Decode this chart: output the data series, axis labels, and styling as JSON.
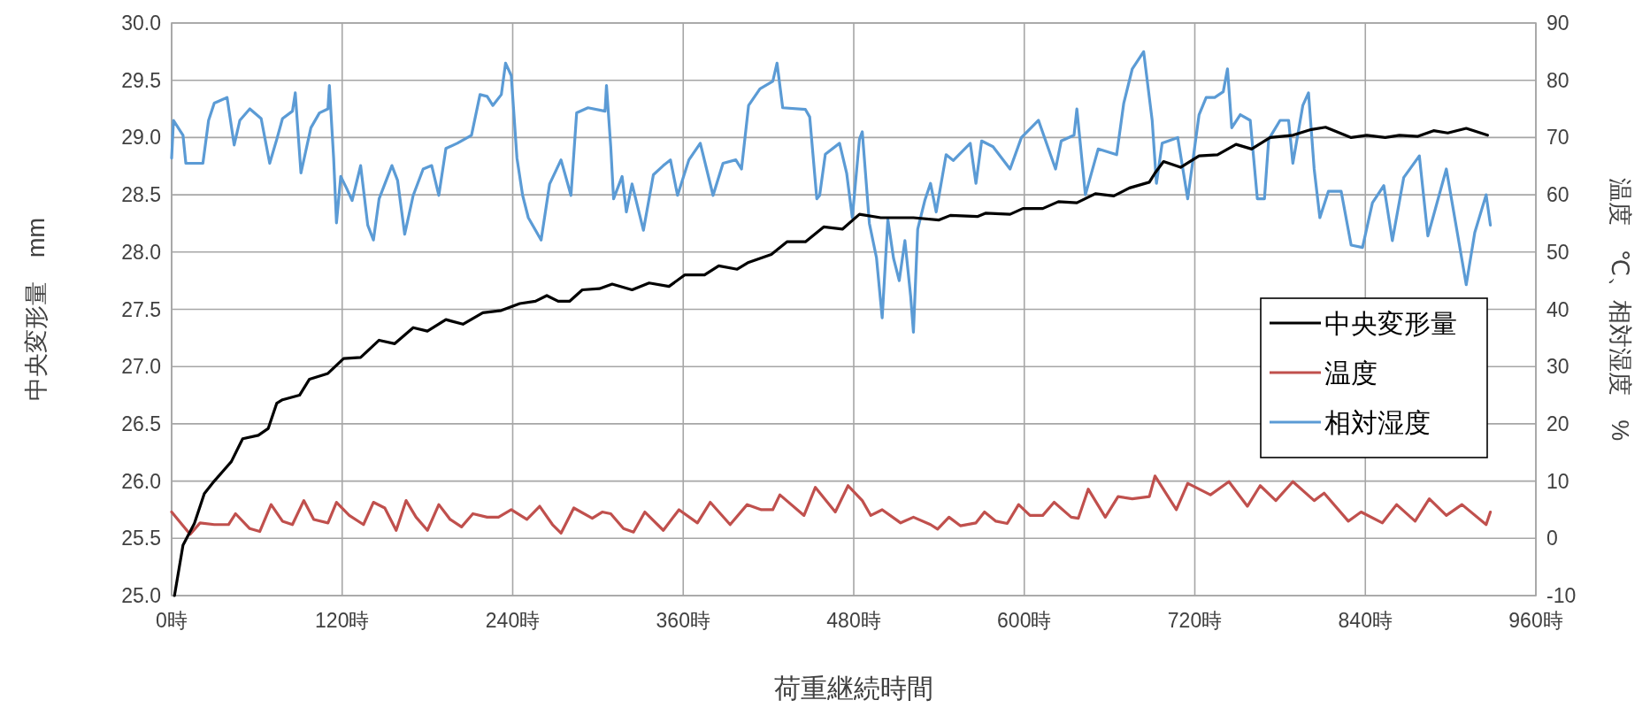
{
  "chart_data": {
    "type": "line",
    "xlabel": "荷重継続時間",
    "ylabel": "中央変形量　mm",
    "y2label": "温度　℃、相対湿度　%",
    "xlim": [
      0,
      960
    ],
    "xticks": [
      {
        "value": 0,
        "label": "0時"
      },
      {
        "value": 120,
        "label": "120時"
      },
      {
        "value": 240,
        "label": "240時"
      },
      {
        "value": 360,
        "label": "360時"
      },
      {
        "value": 480,
        "label": "480時"
      },
      {
        "value": 600,
        "label": "600時"
      },
      {
        "value": 720,
        "label": "720時"
      },
      {
        "value": 840,
        "label": "840時"
      },
      {
        "value": 960,
        "label": "960時"
      }
    ],
    "ylim": [
      25,
      30
    ],
    "yticks": [
      {
        "value": 25,
        "label": "25.0"
      },
      {
        "value": 25.5,
        "label": "25.5"
      },
      {
        "value": 26,
        "label": "26.0"
      },
      {
        "value": 26.5,
        "label": "26.5"
      },
      {
        "value": 27,
        "label": "27.0"
      },
      {
        "value": 27.5,
        "label": "27.5"
      },
      {
        "value": 28,
        "label": "28.0"
      },
      {
        "value": 28.5,
        "label": "28.5"
      },
      {
        "value": 29,
        "label": "29.0"
      },
      {
        "value": 29.5,
        "label": "29.5"
      },
      {
        "value": 30,
        "label": "30.0"
      }
    ],
    "y2lim": [
      -10,
      90
    ],
    "y2ticks": [
      -10,
      0,
      10,
      20,
      30,
      40,
      50,
      60,
      70,
      80,
      90
    ],
    "grid": true,
    "legend": "right",
    "series": [
      {
        "name": "中央変形量",
        "color": "#000000",
        "axis": "y",
        "x": [
          2,
          8,
          16,
          23,
          30,
          42,
          50,
          61,
          68,
          74,
          78,
          90,
          97,
          110,
          121,
          133,
          146,
          157,
          170,
          180,
          193,
          205,
          219,
          232,
          245,
          256,
          264,
          272,
          280,
          289,
          301,
          310,
          324,
          336,
          350,
          361,
          375,
          385,
          398,
          406,
          422,
          433,
          446,
          459,
          472,
          484,
          499,
          522,
          540,
          548,
          567,
          573,
          590,
          599,
          613,
          624,
          637,
          650,
          663,
          674,
          688,
          692,
          698,
          710,
          723,
          736,
          749,
          760,
          773,
          789,
          802,
          812,
          830,
          841,
          854,
          864,
          877,
          888,
          898,
          911,
          926
        ],
        "values": [
          25.0,
          25.44,
          25.63,
          25.89,
          26.0,
          26.17,
          26.37,
          26.4,
          26.46,
          26.68,
          26.71,
          26.75,
          26.89,
          26.94,
          27.07,
          27.08,
          27.23,
          27.2,
          27.34,
          27.31,
          27.41,
          27.37,
          27.47,
          27.49,
          27.55,
          27.57,
          27.62,
          27.57,
          27.57,
          27.67,
          27.68,
          27.72,
          27.67,
          27.73,
          27.7,
          27.8,
          27.8,
          27.88,
          27.85,
          27.91,
          27.98,
          28.09,
          28.09,
          28.22,
          28.2,
          28.33,
          28.3,
          28.3,
          28.28,
          28.32,
          28.31,
          28.34,
          28.33,
          28.38,
          28.38,
          28.44,
          28.43,
          28.51,
          28.49,
          28.56,
          28.61,
          28.69,
          28.79,
          28.74,
          28.84,
          28.85,
          28.94,
          28.9,
          29.0,
          29.02,
          29.07,
          29.09,
          29.0,
          29.02,
          29.0,
          29.02,
          29.01,
          29.06,
          29.04,
          29.08,
          29.02
        ]
      },
      {
        "name": "温度",
        "color": "#c0504d",
        "axis": "y2",
        "x": [
          0,
          13,
          20,
          30,
          40,
          45,
          55,
          62,
          70,
          78,
          85,
          93,
          100,
          110,
          116,
          125,
          135,
          142,
          150,
          158,
          165,
          172,
          180,
          188,
          196,
          204,
          212,
          222,
          230,
          239,
          250,
          259,
          268,
          274,
          283,
          296,
          303,
          309,
          318,
          325,
          333,
          346,
          357,
          370,
          379,
          393,
          405,
          415,
          423,
          428,
          445,
          453,
          467,
          476,
          486,
          492,
          500,
          513,
          522,
          534,
          539,
          547,
          555,
          566,
          572,
          580,
          588,
          596,
          604,
          613,
          621,
          633,
          638,
          645,
          657,
          666,
          676,
          688,
          692,
          707,
          715,
          731,
          744,
          757,
          766,
          777,
          789,
          804,
          811,
          828,
          837,
          852,
          862,
          875,
          885,
          897,
          908,
          925,
          928
        ],
        "values": [
          4.6,
          0.7,
          2.7,
          2.4,
          2.4,
          4.3,
          1.7,
          1.2,
          5.9,
          3.0,
          2.4,
          6.6,
          3.3,
          2.7,
          6.3,
          4.0,
          2.4,
          6.3,
          5.3,
          1.4,
          6.6,
          3.7,
          1.4,
          5.9,
          3.3,
          2.0,
          4.3,
          3.7,
          3.7,
          5.0,
          3.3,
          5.6,
          2.4,
          0.9,
          5.3,
          3.5,
          4.6,
          4.3,
          1.7,
          1.1,
          4.6,
          1.4,
          5.0,
          2.7,
          6.3,
          2.4,
          5.9,
          5.0,
          5.0,
          7.6,
          4.0,
          8.9,
          4.6,
          9.2,
          6.6,
          4.0,
          5.0,
          2.7,
          3.7,
          2.4,
          1.6,
          3.7,
          2.2,
          2.7,
          4.6,
          3.0,
          2.6,
          5.9,
          4.0,
          4.0,
          6.3,
          3.7,
          3.5,
          8.6,
          3.7,
          7.3,
          6.9,
          7.3,
          10.9,
          5.0,
          9.6,
          7.6,
          9.9,
          5.6,
          9.2,
          6.6,
          9.9,
          6.6,
          7.9,
          3.0,
          4.6,
          2.7,
          5.9,
          3.0,
          6.9,
          4.0,
          5.9,
          2.4,
          4.6
        ]
      },
      {
        "name": "相対湿度",
        "color": "#5b9bd5",
        "axis": "y2",
        "x": [
          0,
          1.3,
          8,
          10,
          22,
          26,
          30,
          39,
          44,
          48,
          55,
          63,
          69,
          74,
          78,
          85,
          87,
          91,
          98,
          104,
          110,
          111,
          114,
          116,
          119,
          123,
          127,
          133,
          138,
          142,
          146,
          155,
          159,
          164,
          170,
          177,
          183,
          188,
          193,
          201,
          211,
          217,
          222,
          226,
          232,
          235,
          239,
          243,
          247,
          251,
          260,
          266,
          274,
          281,
          285,
          293,
          305,
          306,
          309,
          311,
          317,
          320,
          324,
          332,
          339,
          346,
          351,
          356,
          364,
          372,
          381,
          388,
          397,
          401,
          406,
          414,
          423,
          426,
          430,
          446,
          449,
          454,
          456,
          460,
          470,
          475,
          479,
          484,
          486,
          491,
          496,
          500,
          504,
          508,
          512,
          516,
          520,
          522,
          525,
          530,
          534,
          538,
          545,
          550,
          562,
          566,
          570,
          578,
          590,
          598,
          610,
          622,
          626,
          635,
          637,
          643,
          652,
          665,
          670,
          676,
          684,
          690,
          693,
          697,
          708,
          715,
          723,
          728,
          734,
          740,
          743,
          746,
          752,
          759,
          764,
          769,
          772,
          780,
          786,
          789,
          796,
          800,
          804,
          808,
          814,
          823,
          830,
          838,
          845,
          853,
          859,
          867,
          878,
          884,
          897,
          911,
          917,
          925,
          928
        ],
        "values": [
          66.4,
          73,
          70.4,
          65.5,
          65.5,
          73,
          76,
          77,
          68.7,
          73,
          75,
          73.3,
          65.5,
          69.7,
          73.3,
          74.6,
          77.8,
          63.8,
          71.7,
          74.3,
          75,
          79.1,
          66.4,
          55.1,
          63.2,
          61.2,
          59,
          65.1,
          54.7,
          52.1,
          59.3,
          65.1,
          62.5,
          53.1,
          59.9,
          64.5,
          65.1,
          59.9,
          68.1,
          69,
          70.4,
          77.5,
          77.2,
          75.6,
          77.5,
          83,
          80.8,
          66.4,
          59.9,
          56,
          52.1,
          61.9,
          66.1,
          59.9,
          74.3,
          75.2,
          74.6,
          79.1,
          68.4,
          59.3,
          63.2,
          57,
          61.9,
          53.8,
          63.5,
          65.1,
          66.1,
          59.9,
          66.1,
          69,
          59.9,
          65.5,
          66.1,
          64.5,
          75.6,
          78.5,
          79.8,
          83,
          75.2,
          74.9,
          73.6,
          59.3,
          59.9,
          67.1,
          69,
          63.8,
          56,
          69.7,
          71,
          55,
          49,
          38.5,
          55.7,
          48.9,
          45,
          52,
          42.4,
          36,
          54,
          59,
          62,
          57,
          67,
          66,
          69,
          62,
          69.4,
          68.4,
          64.5,
          70,
          73,
          64.5,
          69.4,
          70.4,
          75,
          60,
          68,
          67,
          76,
          82,
          85,
          73,
          62,
          69,
          70,
          59.3,
          74,
          77,
          77,
          78,
          82,
          71.7,
          74,
          73,
          59.3,
          59.3,
          69.7,
          73,
          73,
          65.5,
          75.6,
          77.8,
          64.5,
          56,
          60.6,
          60.6,
          51.2,
          50.8,
          58.6,
          61.6,
          52,
          63,
          66.8,
          52.8,
          64.5,
          44.3,
          53.4,
          60,
          54.7
        ]
      }
    ]
  }
}
